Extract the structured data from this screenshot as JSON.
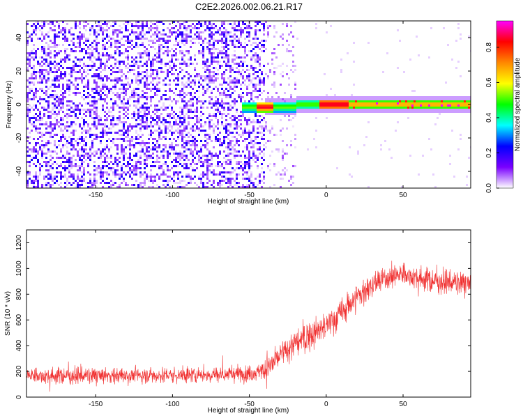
{
  "title": "C2E2.2026.002.06.21.R17",
  "chart_data": [
    {
      "type": "heatmap",
      "xlabel": "Height of straight line (km)",
      "ylabel": "Frequency (Hz)",
      "xlim": [
        -195,
        94
      ],
      "ylim": [
        -50,
        50
      ],
      "xticks": [
        -150,
        -100,
        -50,
        0,
        50
      ],
      "yticks": [
        -40,
        -20,
        0,
        20,
        40
      ],
      "grid": false,
      "colorbar": {
        "label": "Normalized spectral amplitude",
        "range": [
          0,
          0.95
        ],
        "ticks": [
          0.0,
          0.2,
          0.4,
          0.6,
          0.8
        ],
        "colormap": [
          "#ffffff",
          "#7a00ff",
          "#0000ff",
          "#00ffff",
          "#00ff00",
          "#ffff00",
          "#ff8800",
          "#ff0000",
          "#ff00ff"
        ]
      },
      "features": {
        "noise_region_km": [
          -195,
          -40
        ],
        "noise_level": 0.15,
        "carrier_start_km": -55,
        "carrier_frequency_hz": 0,
        "carrier_width_hz": 3,
        "peak_region_km": [
          -5,
          15
        ],
        "peak_amplitude": 0.9
      }
    },
    {
      "type": "line",
      "xlabel": "Height of straight line (km)",
      "ylabel": "SNR (10 * v/v)",
      "xlim": [
        -195,
        94
      ],
      "ylim": [
        0,
        1300
      ],
      "xticks": [
        -150,
        -100,
        -50,
        0,
        50
      ],
      "yticks": [
        0,
        200,
        400,
        600,
        800,
        1000,
        1200
      ],
      "grid": false,
      "series": [
        {
          "color": "#f03030",
          "x": [
            -195,
            -170,
            -150,
            -120,
            -100,
            -80,
            -60,
            -45,
            -38,
            -30,
            -20,
            -10,
            0,
            10,
            20,
            30,
            40,
            50,
            60,
            70,
            80,
            94
          ],
          "y": [
            170,
            165,
            165,
            170,
            170,
            175,
            180,
            190,
            230,
            320,
            420,
            480,
            550,
            660,
            780,
            870,
            930,
            960,
            930,
            900,
            890,
            880
          ]
        }
      ]
    }
  ]
}
